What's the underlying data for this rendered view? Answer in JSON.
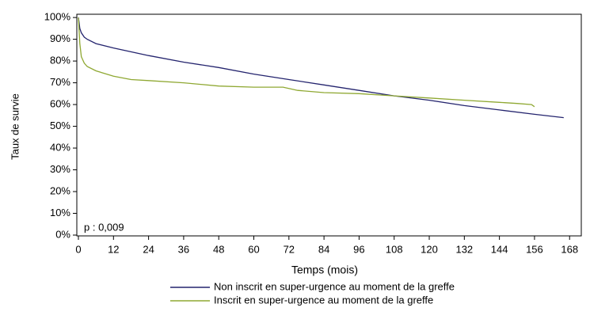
{
  "chart_data": {
    "type": "line",
    "y_label": "Taux de survie",
    "x_label": "Temps (mois)",
    "annotation": "p : 0,009",
    "xlim": [
      0,
      172
    ],
    "ylim": [
      0,
      101.5
    ],
    "xticks": [
      0,
      12,
      24,
      36,
      48,
      60,
      72,
      84,
      96,
      108,
      120,
      132,
      144,
      156,
      168
    ],
    "yticks": [
      {
        "value": 0,
        "label": "0%"
      },
      {
        "value": 10,
        "label": "10%"
      },
      {
        "value": 20,
        "label": "20%"
      },
      {
        "value": 30,
        "label": "30%"
      },
      {
        "value": 40,
        "label": "40%"
      },
      {
        "value": 50,
        "label": "50%"
      },
      {
        "value": 60,
        "label": "60%"
      },
      {
        "value": 70,
        "label": "70%"
      },
      {
        "value": 80,
        "label": "80%"
      },
      {
        "value": 90,
        "label": "90%"
      },
      {
        "value": 100,
        "label": "100%"
      }
    ],
    "grid": false,
    "legend": "bottom",
    "series": [
      {
        "name": "Non inscrit en super-urgence au moment de la greffe",
        "color": "#24246e",
        "x": [
          0,
          0.5,
          1,
          2,
          3,
          6,
          12,
          24,
          36,
          48,
          60,
          72,
          84,
          96,
          108,
          120,
          132,
          144,
          156,
          166
        ],
        "values": [
          100,
          95,
          93,
          91,
          90,
          88,
          86,
          82.5,
          79.5,
          77,
          74,
          71.5,
          69,
          66.5,
          64,
          62,
          59.5,
          57.5,
          55.5,
          54
        ]
      },
      {
        "name": "Inscrit en super-urgence au moment de la greffe",
        "color": "#8fa832",
        "x": [
          0,
          0.5,
          1,
          2,
          3,
          6,
          12,
          18,
          24,
          36,
          48,
          60,
          70,
          75,
          84,
          96,
          108,
          120,
          132,
          144,
          150,
          155,
          156
        ],
        "values": [
          100,
          88,
          82,
          79,
          77.5,
          75.5,
          73,
          71.5,
          71,
          70,
          68.5,
          68,
          68,
          66.5,
          65.5,
          65,
          64,
          63,
          62,
          61,
          60.5,
          60,
          59
        ]
      }
    ]
  }
}
